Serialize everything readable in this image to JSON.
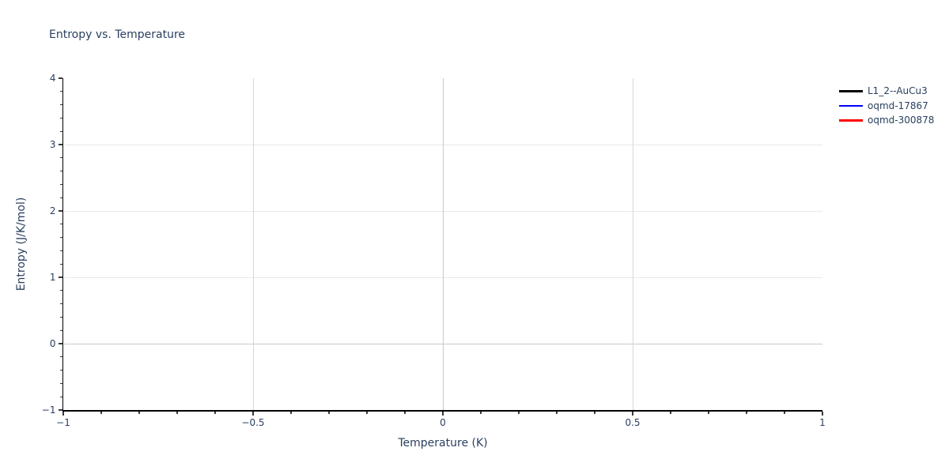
{
  "title": "Entropy vs. Temperature",
  "chart_data": {
    "type": "line",
    "title": "Entropy vs. Temperature",
    "xlabel": "Temperature (K)",
    "ylabel": "Entropy (J/K/mol)",
    "xlim": [
      -1,
      1
    ],
    "ylim": [
      -1,
      4
    ],
    "x_ticks": [
      {
        "v": -1,
        "label": "−1"
      },
      {
        "v": -0.5,
        "label": "−0.5"
      },
      {
        "v": 0,
        "label": "0"
      },
      {
        "v": 0.5,
        "label": "0.5"
      },
      {
        "v": 1,
        "label": "1"
      }
    ],
    "y_ticks": [
      {
        "v": -1,
        "label": "−1"
      },
      {
        "v": 0,
        "label": "0"
      },
      {
        "v": 1,
        "label": "1"
      },
      {
        "v": 2,
        "label": "2"
      },
      {
        "v": 3,
        "label": "3"
      },
      {
        "v": 4,
        "label": "4"
      }
    ],
    "x_minor_step": 0.1,
    "y_minor_step": 0.2,
    "grid": true,
    "legend_position": "outside-top-right",
    "series": [
      {
        "name": "L1_2--AuCu3",
        "color": "#000000",
        "x": [],
        "y": []
      },
      {
        "name": "oqmd-17867",
        "color": "#0000ff",
        "x": [],
        "y": []
      },
      {
        "name": "oqmd-300878",
        "color": "#ff0000",
        "x": [],
        "y": []
      }
    ]
  },
  "colors": {
    "text": "#2a3f5f",
    "axis_line": "#000000",
    "tick": "#3a3a3a",
    "grid_horizontal": "#e9e9e9",
    "grid_vertical": "#d8d8d8",
    "zeroline": "#c9c9c9",
    "background": "#ffffff"
  }
}
